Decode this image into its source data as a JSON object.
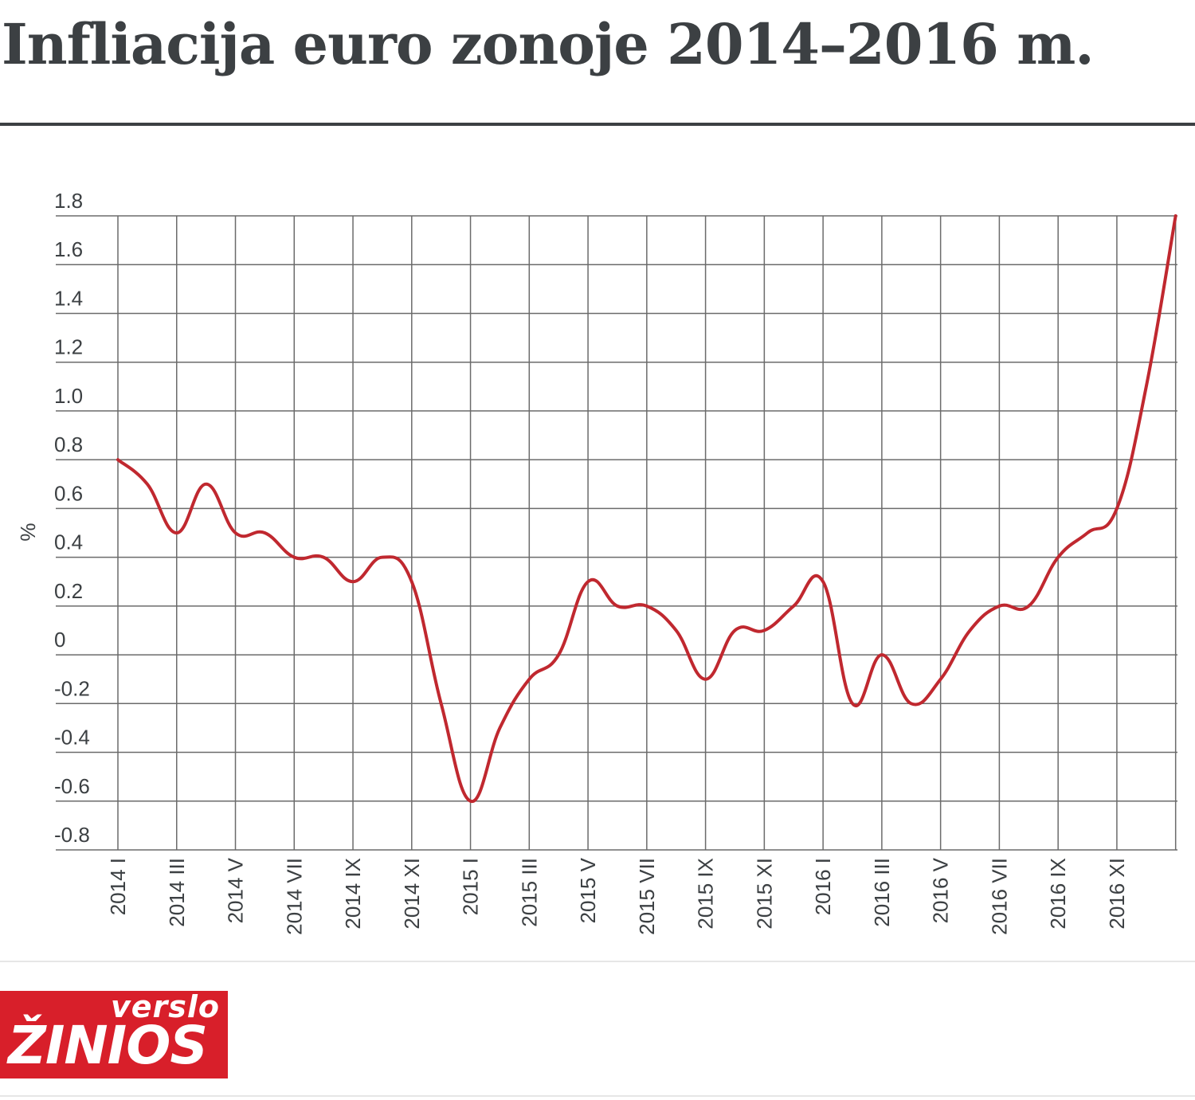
{
  "header": {
    "title": "Infliacija euro zonoje 2014–2016 m."
  },
  "logo": {
    "line1": "verslo",
    "line2": "ŽINIOS"
  },
  "colors": {
    "line": "#c0282f",
    "grid": "#6b6b6b",
    "text": "#3c4043",
    "logo_bg": "#d81f2a"
  },
  "chart_data": {
    "type": "line",
    "title": "Infliacija euro zonoje 2014–2016 m.",
    "xlabel": "",
    "ylabel": "%",
    "ylim": [
      -0.8,
      1.8
    ],
    "yticks": [
      "1.8",
      "1.6",
      "1.4",
      "1.2",
      "1.0",
      "0.8",
      "0.6",
      "0.4",
      "0.2",
      "0",
      "-0.2",
      "-0.4",
      "-0.6",
      "-0.8"
    ],
    "xtick_labels": [
      "2014 I",
      "2014 III",
      "2014 V",
      "2014 VII",
      "2014 IX",
      "2014 XI",
      "2015 I",
      "2015 III",
      "2015 V",
      "2015 VII",
      "2015 IX",
      "2015 XI",
      "2016 I",
      "2016 III",
      "2016 V",
      "2016 VII",
      "2016 IX",
      "2016 XI"
    ],
    "grid": true,
    "series": [
      {
        "values": [
          0.8,
          0.7,
          0.5,
          0.7,
          0.5,
          0.5,
          0.4,
          0.4,
          0.3,
          0.4,
          0.3,
          -0.2,
          -0.6,
          -0.3,
          -0.1,
          0.0,
          0.3,
          0.2,
          0.2,
          0.1,
          -0.1,
          0.1,
          0.1,
          0.2,
          0.3,
          -0.2,
          0.0,
          -0.2,
          -0.1,
          0.1,
          0.2,
          0.2,
          0.4,
          0.5,
          0.6,
          1.1,
          1.8
        ]
      }
    ]
  }
}
